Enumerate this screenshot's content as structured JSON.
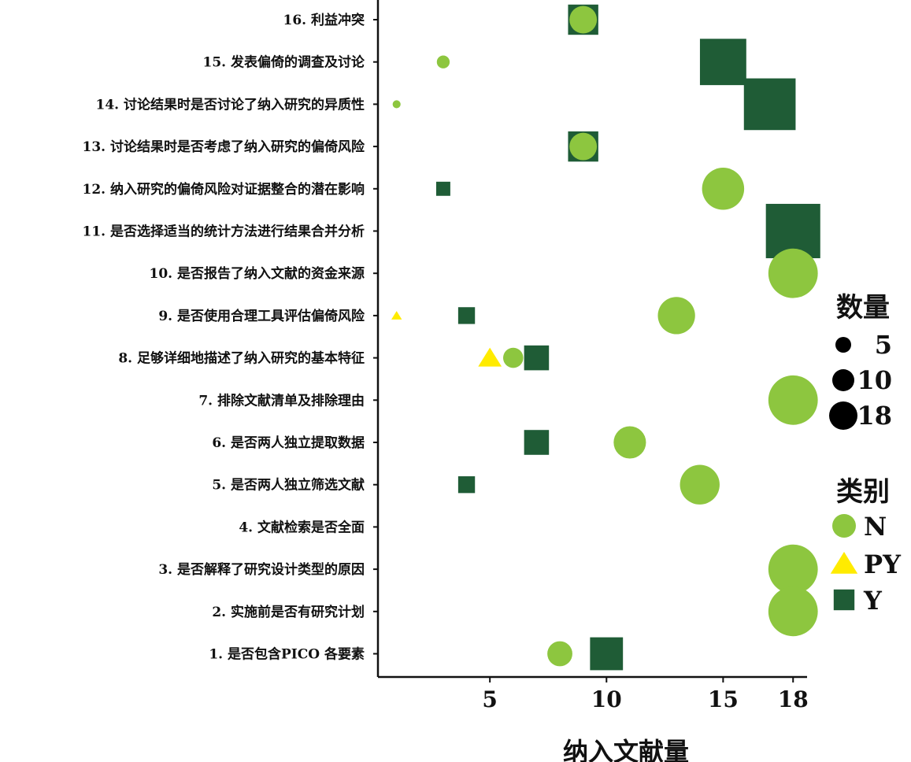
{
  "chart_data": {
    "type": "scatter",
    "xlabel": "纳入文献量",
    "x_ticks": [
      5,
      10,
      15,
      18
    ],
    "xlim": [
      0.2,
      18.6
    ],
    "categories": [
      "16.  利益冲突",
      "15.  发表偏倚的调查及讨论",
      "14.  讨论结果时是否讨论了纳入研究的异质性",
      "13.  讨论结果时是否考虑了纳入研究的偏倚风险",
      "12.  纳入研究的偏倚风险对证据整合的潜在影响",
      "11.  是否选择适当的统计方法进行结果合并分析",
      "10.  是否报告了纳入文献的资金来源",
      "9.  是否使用合理工具评估偏倚风险",
      "8.  足够详细地描述了纳入研究的基本特征",
      "7.  排除文献清单及排除理由",
      "6.  是否两人独立提取数据",
      "5.  是否两人独立筛选文献",
      "4.  文献检索是否全面",
      "3.  是否解释了研究设计类型的原因",
      "2.  实施前是否有研究计划",
      "1.  是否包含PICO 各要素"
    ],
    "series": [
      {
        "name": "N",
        "color": "#8dc63f",
        "shape": "circle",
        "points": [
          {
            "item": "16.  利益冲突",
            "x": 9,
            "size": 9
          },
          {
            "item": "15.  发表偏倚的调查及讨论",
            "x": 3,
            "size": 3
          },
          {
            "item": "14.  讨论结果时是否讨论了纳入研究的异质性",
            "x": 1,
            "size": 1
          },
          {
            "item": "13.  讨论结果时是否考虑了纳入研究的偏倚风险",
            "x": 9,
            "size": 9
          },
          {
            "item": "12.  纳入研究的偏倚风险对证据整合的潜在影响",
            "x": 15,
            "size": 15
          },
          {
            "item": "10.  是否报告了纳入文献的资金来源",
            "x": 18,
            "size": 18
          },
          {
            "item": "9.  是否使用合理工具评估偏倚风险",
            "x": 13,
            "size": 13
          },
          {
            "item": "8.  足够详细地描述了纳入研究的基本特征",
            "x": 6,
            "size": 6
          },
          {
            "item": "7.  排除文献清单及排除理由",
            "x": 18,
            "size": 18
          },
          {
            "item": "6.  是否两人独立提取数据",
            "x": 11,
            "size": 11
          },
          {
            "item": "5.  是否两人独立筛选文献",
            "x": 14,
            "size": 14
          },
          {
            "item": "3.  是否解释了研究设计类型的原因",
            "x": 18,
            "size": 18
          },
          {
            "item": "2.  实施前是否有研究计划",
            "x": 18,
            "size": 18
          },
          {
            "item": "1.  是否包含PICO 各要素",
            "x": 8,
            "size": 8
          }
        ]
      },
      {
        "name": "PY",
        "color": "#ffeb00",
        "shape": "triangle",
        "points": [
          {
            "item": "9.  是否使用合理工具评估偏倚风险",
            "x": 1,
            "size": 1
          },
          {
            "item": "8.  足够详细地描述了纳入研究的基本特征",
            "x": 5,
            "size": 5
          }
        ]
      },
      {
        "name": "Y",
        "color": "#1f5c36",
        "shape": "square",
        "points": [
          {
            "item": "16.  利益冲突",
            "x": 9,
            "size": 9
          },
          {
            "item": "15.  发表偏倚的调查及讨论",
            "x": 15,
            "size": 15
          },
          {
            "item": "14.  讨论结果时是否讨论了纳入研究的异质性",
            "x": 17,
            "size": 17
          },
          {
            "item": "13.  讨论结果时是否考虑了纳入研究的偏倚风险",
            "x": 9,
            "size": 9
          },
          {
            "item": "12.  纳入研究的偏倚风险对证据整合的潜在影响",
            "x": 3,
            "size": 3
          },
          {
            "item": "11.  是否选择适当的统计方法进行结果合并分析",
            "x": 18,
            "size": 18
          },
          {
            "item": "9.  是否使用合理工具评估偏倚风险",
            "x": 4,
            "size": 4
          },
          {
            "item": "8.  足够详细地描述了纳入研究的基本特征",
            "x": 7,
            "size": 7
          },
          {
            "item": "6.  是否两人独立提取数据",
            "x": 7,
            "size": 7
          },
          {
            "item": "5.  是否两人独立筛选文献",
            "x": 4,
            "size": 4
          },
          {
            "item": "1.  是否包含PICO 各要素",
            "x": 10,
            "size": 10
          }
        ]
      }
    ],
    "legend": {
      "size_title": "数量",
      "size_values": [
        5,
        10,
        18
      ],
      "category_title": "类别",
      "categories": [
        "N",
        "PY",
        "Y"
      ],
      "placement": "right"
    }
  }
}
